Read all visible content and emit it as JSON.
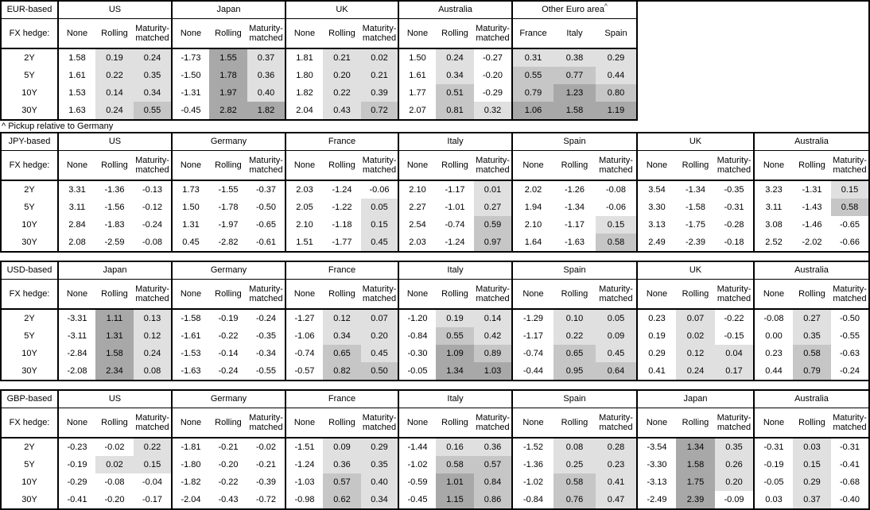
{
  "footnote": "^ Pickup relative to Germany",
  "hedge_label": "FX hedge:",
  "standard_cols": [
    "None",
    "Rolling",
    "Maturity-matched"
  ],
  "row_labels": [
    "2Y",
    "5Y",
    "10Y",
    "30Y"
  ],
  "colors": {
    "border": "#000000",
    "heat_light": "#e0e0e0",
    "heat_medium": "#c6c6c6",
    "heat_dark": "#a8a8a8"
  },
  "heatmap_thresholds": {
    "light_min": 0,
    "medium_min": 0.5,
    "dark_min": 1.0
  },
  "tables": [
    {
      "base": "EUR-based",
      "groups": [
        {
          "name": "US",
          "cols": [
            "None",
            "Rolling",
            "Maturity-matched"
          ],
          "shaded": [
            false,
            true,
            true
          ],
          "rows": [
            [
              "1.58",
              "0.19",
              "0.24"
            ],
            [
              "1.61",
              "0.22",
              "0.35"
            ],
            [
              "1.53",
              "0.14",
              "0.34"
            ],
            [
              "1.63",
              "0.24",
              "0.55"
            ]
          ]
        },
        {
          "name": "Japan",
          "cols": [
            "None",
            "Rolling",
            "Maturity-matched"
          ],
          "shaded": [
            false,
            true,
            true
          ],
          "rows": [
            [
              "-1.73",
              "1.55",
              "0.37"
            ],
            [
              "-1.50",
              "1.78",
              "0.36"
            ],
            [
              "-1.31",
              "1.97",
              "0.40"
            ],
            [
              "-0.45",
              "2.82",
              "1.82"
            ]
          ]
        },
        {
          "name": "UK",
          "cols": [
            "None",
            "Rolling",
            "Maturity-matched"
          ],
          "shaded": [
            false,
            true,
            true
          ],
          "rows": [
            [
              "1.81",
              "0.21",
              "0.02"
            ],
            [
              "1.80",
              "0.20",
              "0.21"
            ],
            [
              "1.82",
              "0.22",
              "0.39"
            ],
            [
              "2.04",
              "0.43",
              "0.72"
            ]
          ]
        },
        {
          "name": "Australia",
          "cols": [
            "None",
            "Rolling",
            "Maturity-matched"
          ],
          "shaded": [
            false,
            true,
            true
          ],
          "rows": [
            [
              "1.50",
              "0.24",
              "-0.27"
            ],
            [
              "1.61",
              "0.34",
              "-0.20"
            ],
            [
              "1.77",
              "0.51",
              "-0.29"
            ],
            [
              "2.07",
              "0.81",
              "0.32"
            ]
          ]
        },
        {
          "name": "Other Euro area",
          "sup": "^",
          "cols": [
            "France",
            "Italy",
            "Spain"
          ],
          "shaded": [
            true,
            true,
            true
          ],
          "rows": [
            [
              "0.31",
              "0.38",
              "0.29"
            ],
            [
              "0.55",
              "0.77",
              "0.44"
            ],
            [
              "0.79",
              "1.23",
              "0.80"
            ],
            [
              "1.06",
              "1.58",
              "1.19"
            ]
          ]
        }
      ]
    },
    {
      "base": "JPY-based",
      "groups": [
        {
          "name": "US",
          "cols": [
            "None",
            "Rolling",
            "Maturity-matched"
          ],
          "shaded": [
            false,
            true,
            true
          ],
          "rows": [
            [
              "3.31",
              "-1.36",
              "-0.13"
            ],
            [
              "3.11",
              "-1.56",
              "-0.12"
            ],
            [
              "2.84",
              "-1.83",
              "-0.24"
            ],
            [
              "2.08",
              "-2.59",
              "-0.08"
            ]
          ]
        },
        {
          "name": "Germany",
          "cols": [
            "None",
            "Rolling",
            "Maturity-matched"
          ],
          "shaded": [
            false,
            true,
            true
          ],
          "rows": [
            [
              "1.73",
              "-1.55",
              "-0.37"
            ],
            [
              "1.50",
              "-1.78",
              "-0.50"
            ],
            [
              "1.31",
              "-1.97",
              "-0.65"
            ],
            [
              "0.45",
              "-2.82",
              "-0.61"
            ]
          ]
        },
        {
          "name": "France",
          "cols": [
            "None",
            "Rolling",
            "Maturity-matched"
          ],
          "shaded": [
            false,
            true,
            true
          ],
          "rows": [
            [
              "2.03",
              "-1.24",
              "-0.06"
            ],
            [
              "2.05",
              "-1.22",
              "0.05"
            ],
            [
              "2.10",
              "-1.18",
              "0.15"
            ],
            [
              "1.51",
              "-1.77",
              "0.45"
            ]
          ]
        },
        {
          "name": "Italy",
          "cols": [
            "None",
            "Rolling",
            "Maturity-matched"
          ],
          "shaded": [
            false,
            true,
            true
          ],
          "rows": [
            [
              "2.10",
              "-1.17",
              "0.01"
            ],
            [
              "2.27",
              "-1.01",
              "0.27"
            ],
            [
              "2.54",
              "-0.74",
              "0.59"
            ],
            [
              "2.03",
              "-1.24",
              "0.97"
            ]
          ]
        },
        {
          "name": "Spain",
          "cols": [
            "None",
            "Rolling",
            "Maturity-matched"
          ],
          "shaded": [
            false,
            true,
            true
          ],
          "rows": [
            [
              "2.02",
              "-1.26",
              "-0.08"
            ],
            [
              "1.94",
              "-1.34",
              "-0.06"
            ],
            [
              "2.10",
              "-1.17",
              "0.15"
            ],
            [
              "1.64",
              "-1.63",
              "0.58"
            ]
          ]
        },
        {
          "name": "UK",
          "cols": [
            "None",
            "Rolling",
            "Maturity-matched"
          ],
          "shaded": [
            false,
            true,
            true
          ],
          "rows": [
            [
              "3.54",
              "-1.34",
              "-0.35"
            ],
            [
              "3.30",
              "-1.58",
              "-0.31"
            ],
            [
              "3.13",
              "-1.75",
              "-0.28"
            ],
            [
              "2.49",
              "-2.39",
              "-0.18"
            ]
          ]
        },
        {
          "name": "Australia",
          "cols": [
            "None",
            "Rolling",
            "Maturity-matched"
          ],
          "shaded": [
            false,
            true,
            true
          ],
          "rows": [
            [
              "3.23",
              "-1.31",
              "0.15"
            ],
            [
              "3.11",
              "-1.43",
              "0.58"
            ],
            [
              "3.08",
              "-1.46",
              "-0.65"
            ],
            [
              "2.52",
              "-2.02",
              "-0.66"
            ]
          ]
        }
      ]
    },
    {
      "base": "USD-based",
      "groups": [
        {
          "name": "Japan",
          "cols": [
            "None",
            "Rolling",
            "Maturity-matched"
          ],
          "shaded": [
            false,
            true,
            true
          ],
          "rows": [
            [
              "-3.31",
              "1.11",
              "0.13"
            ],
            [
              "-3.11",
              "1.31",
              "0.12"
            ],
            [
              "-2.84",
              "1.58",
              "0.24"
            ],
            [
              "-2.08",
              "2.34",
              "0.08"
            ]
          ]
        },
        {
          "name": "Germany",
          "cols": [
            "None",
            "Rolling",
            "Maturity-matched"
          ],
          "shaded": [
            false,
            true,
            true
          ],
          "rows": [
            [
              "-1.58",
              "-0.19",
              "-0.24"
            ],
            [
              "-1.61",
              "-0.22",
              "-0.35"
            ],
            [
              "-1.53",
              "-0.14",
              "-0.34"
            ],
            [
              "-1.63",
              "-0.24",
              "-0.55"
            ]
          ]
        },
        {
          "name": "France",
          "cols": [
            "None",
            "Rolling",
            "Maturity-matched"
          ],
          "shaded": [
            false,
            true,
            true
          ],
          "rows": [
            [
              "-1.27",
              "0.12",
              "0.07"
            ],
            [
              "-1.06",
              "0.34",
              "0.20"
            ],
            [
              "-0.74",
              "0.65",
              "0.45"
            ],
            [
              "-0.57",
              "0.82",
              "0.50"
            ]
          ]
        },
        {
          "name": "Italy",
          "cols": [
            "None",
            "Rolling",
            "Maturity-matched"
          ],
          "shaded": [
            false,
            true,
            true
          ],
          "rows": [
            [
              "-1.20",
              "0.19",
              "0.14"
            ],
            [
              "-0.84",
              "0.55",
              "0.42"
            ],
            [
              "-0.30",
              "1.09",
              "0.89"
            ],
            [
              "-0.05",
              "1.34",
              "1.03"
            ]
          ]
        },
        {
          "name": "Spain",
          "cols": [
            "None",
            "Rolling",
            "Maturity-matched"
          ],
          "shaded": [
            false,
            true,
            true
          ],
          "rows": [
            [
              "-1.29",
              "0.10",
              "0.05"
            ],
            [
              "-1.17",
              "0.22",
              "0.09"
            ],
            [
              "-0.74",
              "0.65",
              "0.45"
            ],
            [
              "-0.44",
              "0.95",
              "0.64"
            ]
          ]
        },
        {
          "name": "UK",
          "cols": [
            "None",
            "Rolling",
            "Maturity-matched"
          ],
          "shaded": [
            false,
            true,
            true
          ],
          "rows": [
            [
              "0.23",
              "0.07",
              "-0.22"
            ],
            [
              "0.19",
              "0.02",
              "-0.15"
            ],
            [
              "0.29",
              "0.12",
              "0.04"
            ],
            [
              "0.41",
              "0.24",
              "0.17"
            ]
          ]
        },
        {
          "name": "Australia",
          "cols": [
            "None",
            "Rolling",
            "Maturity-matched"
          ],
          "shaded": [
            false,
            true,
            true
          ],
          "rows": [
            [
              "-0.08",
              "0.27",
              "-0.50"
            ],
            [
              "0.00",
              "0.35",
              "-0.55"
            ],
            [
              "0.23",
              "0.58",
              "-0.63"
            ],
            [
              "0.44",
              "0.79",
              "-0.24"
            ]
          ]
        }
      ]
    },
    {
      "base": "GBP-based",
      "groups": [
        {
          "name": "US",
          "cols": [
            "None",
            "Rolling",
            "Maturity-matched"
          ],
          "shaded": [
            false,
            true,
            true
          ],
          "rows": [
            [
              "-0.23",
              "-0.02",
              "0.22"
            ],
            [
              "-0.19",
              "0.02",
              "0.15"
            ],
            [
              "-0.29",
              "-0.08",
              "-0.04"
            ],
            [
              "-0.41",
              "-0.20",
              "-0.17"
            ]
          ]
        },
        {
          "name": "Germany",
          "cols": [
            "None",
            "Rolling",
            "Maturity-matched"
          ],
          "shaded": [
            false,
            true,
            true
          ],
          "rows": [
            [
              "-1.81",
              "-0.21",
              "-0.02"
            ],
            [
              "-1.80",
              "-0.20",
              "-0.21"
            ],
            [
              "-1.82",
              "-0.22",
              "-0.39"
            ],
            [
              "-2.04",
              "-0.43",
              "-0.72"
            ]
          ]
        },
        {
          "name": "France",
          "cols": [
            "None",
            "Rolling",
            "Maturity-matched"
          ],
          "shaded": [
            false,
            true,
            true
          ],
          "rows": [
            [
              "-1.51",
              "0.09",
              "0.29"
            ],
            [
              "-1.24",
              "0.36",
              "0.35"
            ],
            [
              "-1.03",
              "0.57",
              "0.40"
            ],
            [
              "-0.98",
              "0.62",
              "0.34"
            ]
          ]
        },
        {
          "name": "Italy",
          "cols": [
            "None",
            "Rolling",
            "Maturity-matched"
          ],
          "shaded": [
            false,
            true,
            true
          ],
          "rows": [
            [
              "-1.44",
              "0.16",
              "0.36"
            ],
            [
              "-1.02",
              "0.58",
              "0.57"
            ],
            [
              "-0.59",
              "1.01",
              "0.84"
            ],
            [
              "-0.45",
              "1.15",
              "0.86"
            ]
          ]
        },
        {
          "name": "Spain",
          "cols": [
            "None",
            "Rolling",
            "Maturity-matched"
          ],
          "shaded": [
            false,
            true,
            true
          ],
          "rows": [
            [
              "-1.52",
              "0.08",
              "0.28"
            ],
            [
              "-1.36",
              "0.25",
              "0.23"
            ],
            [
              "-1.02",
              "0.58",
              "0.41"
            ],
            [
              "-0.84",
              "0.76",
              "0.47"
            ]
          ]
        },
        {
          "name": "Japan",
          "cols": [
            "None",
            "Rolling",
            "Maturity-matched"
          ],
          "shaded": [
            false,
            true,
            true
          ],
          "rows": [
            [
              "-3.54",
              "1.34",
              "0.35"
            ],
            [
              "-3.30",
              "1.58",
              "0.26"
            ],
            [
              "-3.13",
              "1.75",
              "0.20"
            ],
            [
              "-2.49",
              "2.39",
              "-0.09"
            ]
          ]
        },
        {
          "name": "Australia",
          "cols": [
            "None",
            "Rolling",
            "Maturity-matched"
          ],
          "shaded": [
            false,
            true,
            true
          ],
          "rows": [
            [
              "-0.31",
              "0.03",
              "-0.31"
            ],
            [
              "-0.19",
              "0.15",
              "-0.41"
            ],
            [
              "-0.05",
              "0.29",
              "-0.68"
            ],
            [
              "0.03",
              "0.37",
              "-0.40"
            ]
          ]
        }
      ]
    }
  ]
}
